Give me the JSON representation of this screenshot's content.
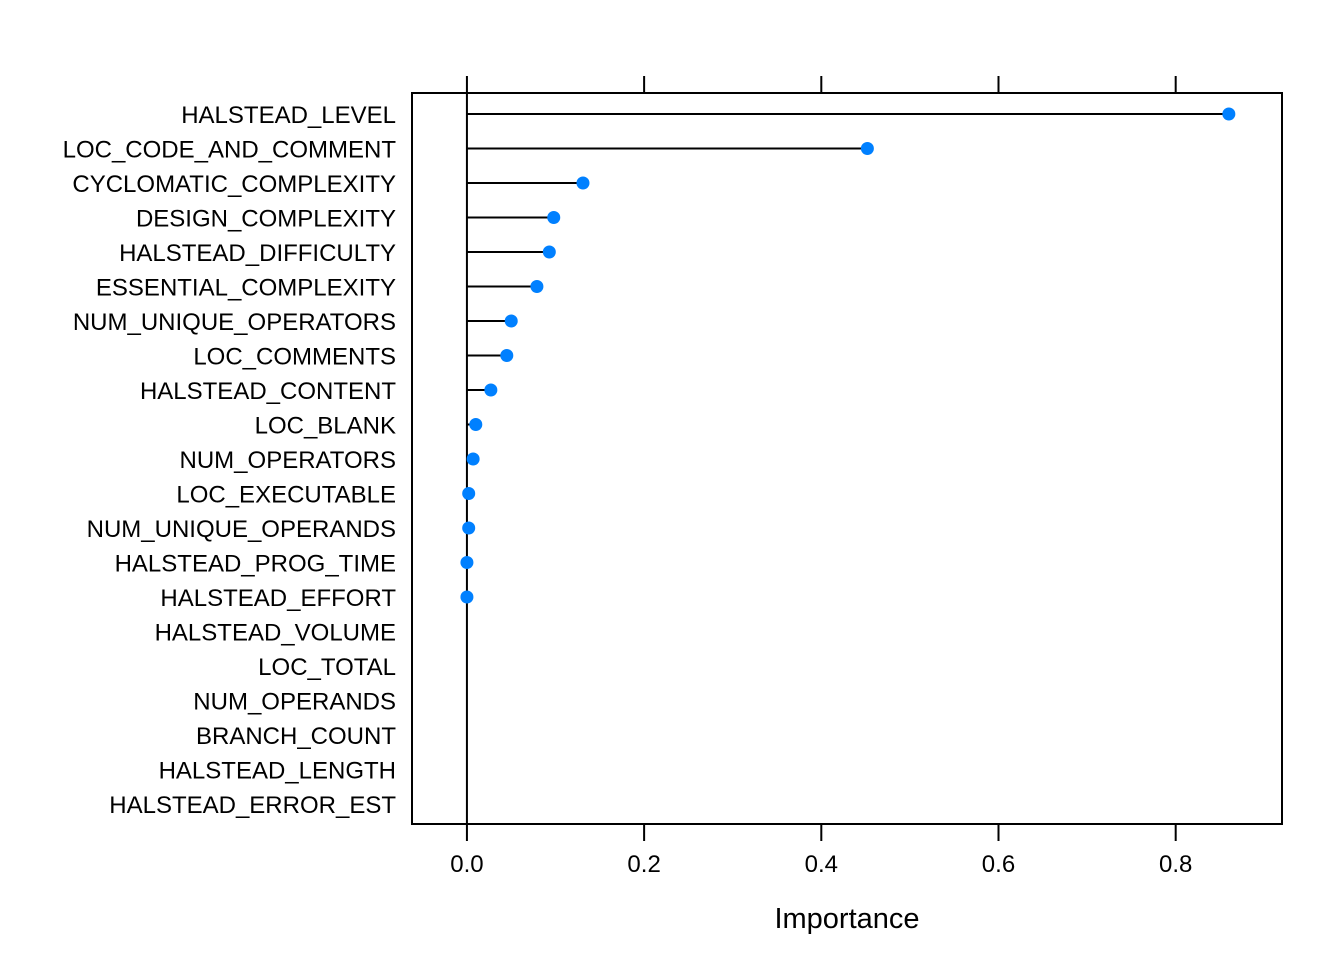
{
  "chart_data": {
    "type": "dotplot",
    "xlabel": "Importance",
    "xlim": [
      -0.062,
      0.92
    ],
    "xticks": [
      0.0,
      0.2,
      0.4,
      0.6,
      0.8
    ],
    "xtick_labels": [
      "0.0",
      "0.2",
      "0.4",
      "0.6",
      "0.8"
    ],
    "point_color": "#0080ff",
    "line_color": "#000000",
    "categories": [
      "HALSTEAD_LEVEL",
      "LOC_CODE_AND_COMMENT",
      "CYCLOMATIC_COMPLEXITY",
      "DESIGN_COMPLEXITY",
      "HALSTEAD_DIFFICULTY",
      "ESSENTIAL_COMPLEXITY",
      "NUM_UNIQUE_OPERATORS",
      "LOC_COMMENTS",
      "HALSTEAD_CONTENT",
      "LOC_BLANK",
      "NUM_OPERATORS",
      "LOC_EXECUTABLE",
      "NUM_UNIQUE_OPERANDS",
      "HALSTEAD_PROG_TIME",
      "HALSTEAD_EFFORT",
      "HALSTEAD_VOLUME",
      "LOC_TOTAL",
      "NUM_OPERANDS",
      "BRANCH_COUNT",
      "HALSTEAD_LENGTH",
      "HALSTEAD_ERROR_EST"
    ],
    "values": [
      0.86,
      0.452,
      0.131,
      0.098,
      0.093,
      0.079,
      0.05,
      0.045,
      0.027,
      0.01,
      0.007,
      0.002,
      0.002,
      0.0,
      0.0,
      null,
      null,
      null,
      null,
      null,
      null
    ]
  }
}
